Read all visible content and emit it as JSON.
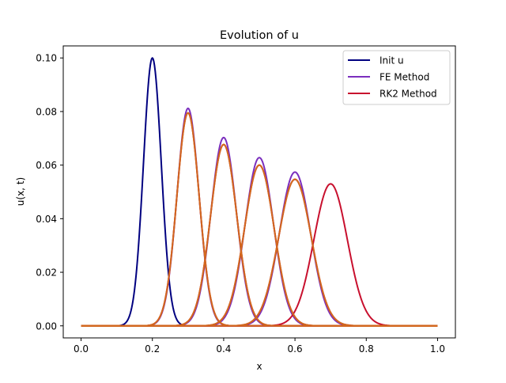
{
  "chart_data": {
    "type": "line",
    "title": "Evolution of u",
    "xlabel": "x",
    "ylabel": "u(x, t)",
    "xlim": [
      -0.05,
      1.05
    ],
    "ylim": [
      -0.0045,
      0.1045
    ],
    "xticks": [
      0.0,
      0.2,
      0.4,
      0.6,
      0.8,
      1.0
    ],
    "xtick_labels": [
      "0.0",
      "0.2",
      "0.4",
      "0.6",
      "0.8",
      "1.0"
    ],
    "yticks": [
      0.0,
      0.02,
      0.04,
      0.06,
      0.08,
      0.1
    ],
    "ytick_labels": [
      "0.00",
      "0.02",
      "0.04",
      "0.06",
      "0.08",
      "0.10"
    ],
    "grid": false,
    "legend_position": "top-right",
    "series": [
      {
        "name": "Init u",
        "color": "#000080",
        "peaks": [
          {
            "center": 0.2,
            "amplitude": 0.1,
            "width": 0.025
          }
        ]
      },
      {
        "name": "FE Method",
        "color": "#7b2fbe",
        "peaks": [
          {
            "center": 0.3,
            "amplitude": 0.0812,
            "width": 0.0308
          },
          {
            "center": 0.4,
            "amplitude": 0.0703,
            "width": 0.0356
          },
          {
            "center": 0.5,
            "amplitude": 0.0628,
            "width": 0.0398
          },
          {
            "center": 0.6,
            "amplitude": 0.0574,
            "width": 0.0436
          }
        ]
      },
      {
        "name": "RK2 Method",
        "color": "#c8102e",
        "peaks": [
          {
            "center": 0.3,
            "amplitude": 0.0795,
            "width": 0.0314
          },
          {
            "center": 0.4,
            "amplitude": 0.0677,
            "width": 0.0369
          },
          {
            "center": 0.5,
            "amplitude": 0.06,
            "width": 0.0416
          },
          {
            "center": 0.6,
            "amplitude": 0.0547,
            "width": 0.0457
          },
          {
            "center": 0.7,
            "amplitude": 0.053,
            "width": 0.047
          }
        ]
      },
      {
        "color": "#d2691e",
        "peaks": [
          {
            "center": 0.3,
            "amplitude": 0.0795,
            "width": 0.0314
          },
          {
            "center": 0.4,
            "amplitude": 0.0677,
            "width": 0.0369
          },
          {
            "center": 0.5,
            "amplitude": 0.06,
            "width": 0.0416
          },
          {
            "center": 0.6,
            "amplitude": 0.0547,
            "width": 0.0457
          }
        ]
      }
    ]
  }
}
